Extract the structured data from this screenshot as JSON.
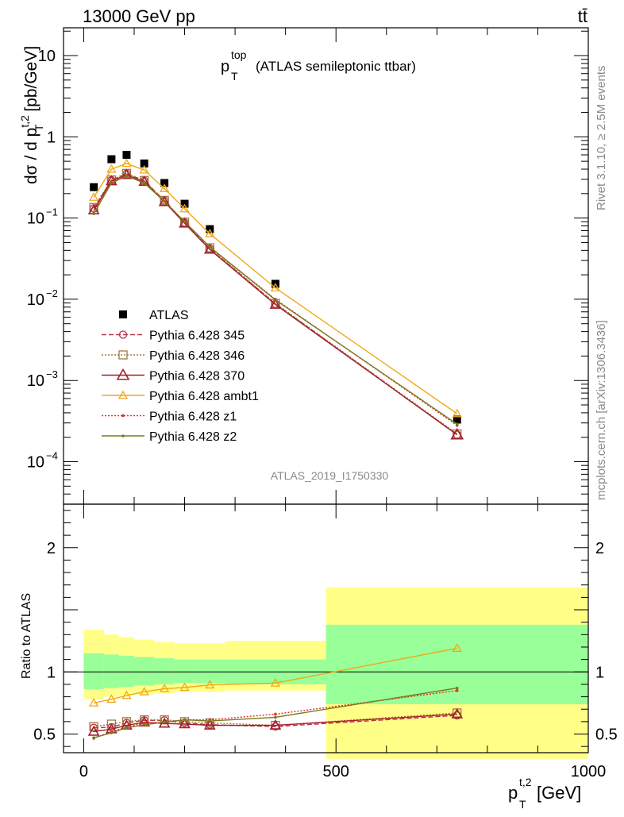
{
  "header": {
    "left": "13000 GeV pp",
    "right": "tt̄"
  },
  "title": {
    "main": "p",
    "sup": "top",
    "sub": "T",
    "rest": "(ATLAS semileptonic ttbar)"
  },
  "right_labels": {
    "top": "Rivet 3.1.10, ≥ 2.5M events",
    "bottom": "mcplots.cern.ch [arXiv:1306.3436]"
  },
  "watermark": "ATLAS_2019_I1750330",
  "ylabel_main": {
    "prefix": "dσ / d p",
    "sup": "t,2",
    "sub": "T",
    "suffix": " [pb/GeV]"
  },
  "ylabel_ratio": "Ratio to ATLAS",
  "xlabel": {
    "base": "p",
    "sup": "t,2",
    "sub": "T",
    "suffix": " [GeV]"
  },
  "colors": {
    "band_inner": "#99ff99",
    "band_outer": "#ffff88"
  },
  "chart_data": [
    {
      "type": "scatter",
      "panel": "main",
      "yscale": "log",
      "xlim": [
        -40,
        1000
      ],
      "ylim": [
        3e-05,
        22
      ],
      "yticks": [
        {
          "v": 10,
          "label": "10"
        },
        {
          "v": 1,
          "label": "1"
        },
        {
          "v": 0.1,
          "label": "10",
          "exp": "−1"
        },
        {
          "v": 0.01,
          "label": "10",
          "exp": "−2"
        },
        {
          "v": 0.001,
          "label": "10",
          "exp": "−3"
        },
        {
          "v": 0.0001,
          "label": "10",
          "exp": "−4"
        }
      ],
      "x": [
        20,
        55,
        85,
        120,
        160,
        200,
        250,
        380,
        740
      ],
      "series": [
        {
          "name": "ATLAS",
          "style": "data",
          "color": "#000000",
          "values": [
            0.24,
            0.53,
            0.6,
            0.47,
            0.27,
            0.15,
            0.073,
            0.0155,
            0.00033
          ]
        },
        {
          "name": "Pythia 6.428 345",
          "style": "circle",
          "dash": "6,3",
          "color": "#c0304a",
          "values": [
            0.132,
            0.293,
            0.352,
            0.288,
            0.164,
            0.088,
            0.042,
            0.0088,
            0.000215
          ]
        },
        {
          "name": "Pythia 6.428 346",
          "style": "square",
          "dash": "2,2",
          "color": "#a07840",
          "values": [
            0.135,
            0.295,
            0.355,
            0.29,
            0.165,
            0.089,
            0.043,
            0.0089,
            0.00022
          ]
        },
        {
          "name": "Pythia 6.428 370",
          "style": "triangle",
          "dash": "",
          "color": "#a01e2e",
          "values": [
            0.125,
            0.285,
            0.34,
            0.28,
            0.158,
            0.086,
            0.041,
            0.0086,
            0.000215
          ]
        },
        {
          "name": "Pythia 6.428 ambt1",
          "style": "triangle-small",
          "dash": "",
          "color": "#f0a818",
          "values": [
            0.18,
            0.4,
            0.47,
            0.39,
            0.23,
            0.13,
            0.064,
            0.0138,
            0.00039
          ]
        },
        {
          "name": "Pythia 6.428 z1",
          "style": "dot",
          "dash": "2,2",
          "color": "#e03020",
          "values": [
            0.115,
            0.275,
            0.335,
            0.275,
            0.16,
            0.09,
            0.044,
            0.01,
            0.00028
          ]
        },
        {
          "name": "Pythia 6.428 z2",
          "style": "dot",
          "dash": "",
          "color": "#7a7a1e",
          "values": [
            0.113,
            0.27,
            0.33,
            0.27,
            0.16,
            0.09,
            0.044,
            0.0098,
            0.00029
          ]
        }
      ]
    },
    {
      "type": "line",
      "panel": "ratio",
      "xlim": [
        -40,
        1000
      ],
      "ylim": [
        0.35,
        2.35
      ],
      "xticks": [
        0,
        500,
        1000
      ],
      "yticks": [
        0.5,
        1,
        2
      ],
      "bands": [
        {
          "x0": 0,
          "x1": 40,
          "inner": [
            0.86,
            1.15
          ],
          "outer": [
            0.78,
            1.34
          ]
        },
        {
          "x0": 40,
          "x1": 70,
          "inner": [
            0.87,
            1.14
          ],
          "outer": [
            0.8,
            1.3
          ]
        },
        {
          "x0": 70,
          "x1": 100,
          "inner": [
            0.88,
            1.13
          ],
          "outer": [
            0.81,
            1.28
          ]
        },
        {
          "x0": 100,
          "x1": 140,
          "inner": [
            0.89,
            1.12
          ],
          "outer": [
            0.82,
            1.26
          ]
        },
        {
          "x0": 140,
          "x1": 180,
          "inner": [
            0.9,
            1.11
          ],
          "outer": [
            0.83,
            1.24
          ]
        },
        {
          "x0": 180,
          "x1": 220,
          "inner": [
            0.91,
            1.1
          ],
          "outer": [
            0.84,
            1.23
          ]
        },
        {
          "x0": 220,
          "x1": 280,
          "inner": [
            0.91,
            1.1
          ],
          "outer": [
            0.84,
            1.23
          ]
        },
        {
          "x0": 280,
          "x1": 480,
          "inner": [
            0.9,
            1.1
          ],
          "outer": [
            0.85,
            1.25
          ]
        },
        {
          "x0": 480,
          "x1": 1000,
          "inner": [
            0.74,
            1.38
          ],
          "outer": [
            0.3,
            1.68
          ]
        }
      ],
      "x": [
        20,
        55,
        85,
        120,
        160,
        200,
        250,
        380,
        740
      ],
      "series": [
        {
          "name": "Pythia 6.428 345",
          "values": [
            0.55,
            0.555,
            0.59,
            0.61,
            0.61,
            0.59,
            0.575,
            0.56,
            0.65
          ]
        },
        {
          "name": "Pythia 6.428 346",
          "values": [
            0.56,
            0.58,
            0.6,
            0.615,
            0.615,
            0.6,
            0.59,
            0.57,
            0.67
          ]
        },
        {
          "name": "Pythia 6.428 370",
          "values": [
            0.52,
            0.54,
            0.57,
            0.595,
            0.585,
            0.58,
            0.57,
            0.57,
            0.66
          ]
        },
        {
          "name": "Pythia 6.428 ambt1",
          "values": [
            0.75,
            0.78,
            0.81,
            0.84,
            0.865,
            0.875,
            0.895,
            0.91,
            1.19
          ]
        },
        {
          "name": "Pythia 6.428 z1",
          "values": [
            0.465,
            0.52,
            0.555,
            0.59,
            0.595,
            0.615,
            0.615,
            0.66,
            0.85
          ]
        },
        {
          "name": "Pythia 6.428 z2",
          "values": [
            0.47,
            0.51,
            0.55,
            0.575,
            0.595,
            0.615,
            0.605,
            0.635,
            0.87
          ]
        }
      ]
    }
  ]
}
